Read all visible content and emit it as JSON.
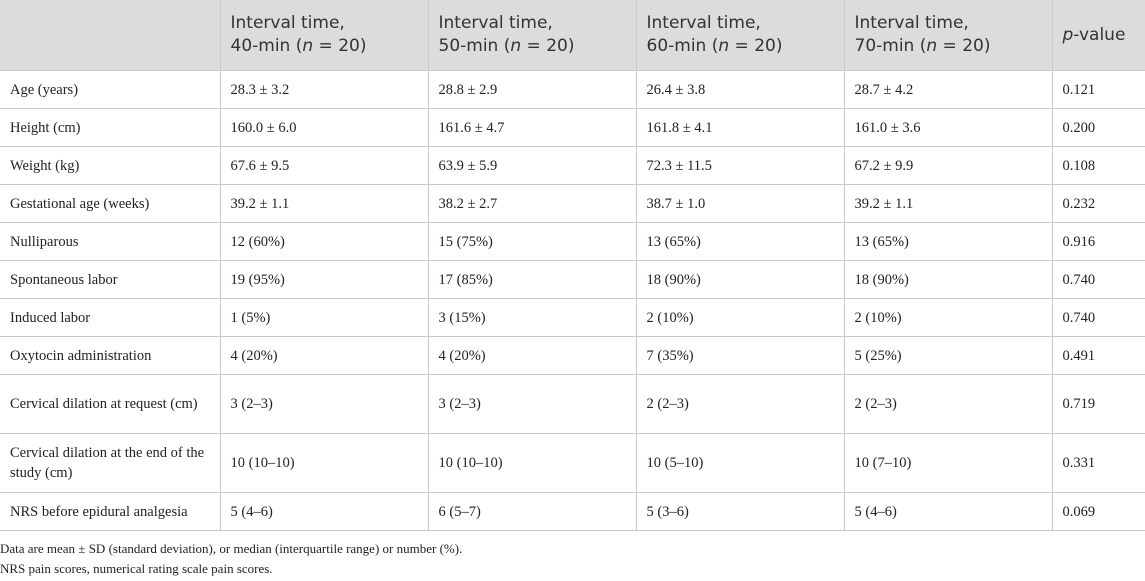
{
  "table": {
    "headers": [
      {
        "l1": "",
        "l2": ""
      },
      {
        "l1": "Interval time,",
        "l2": "40-min (n = 20)"
      },
      {
        "l1": "Interval time,",
        "l2": "50-min (n = 20)"
      },
      {
        "l1": "Interval time,",
        "l2": "60-min (n = 20)"
      },
      {
        "l1": "Interval time,",
        "l2": "70-min (n = 20)"
      },
      {
        "l1": "p-value",
        "l2": ""
      }
    ],
    "rows": [
      [
        "Age (years)",
        "28.3 ± 3.2",
        "28.8 ± 2.9",
        "26.4 ± 3.8",
        "28.7 ± 4.2",
        "0.121"
      ],
      [
        "Height (cm)",
        "160.0 ± 6.0",
        "161.6 ± 4.7",
        "161.8 ± 4.1",
        "161.0 ± 3.6",
        "0.200"
      ],
      [
        "Weight (kg)",
        "67.6 ± 9.5",
        "63.9 ± 5.9",
        "72.3 ± 11.5",
        "67.2 ± 9.9",
        "0.108"
      ],
      [
        "Gestational age (weeks)",
        "39.2 ± 1.1",
        "38.2 ± 2.7",
        "38.7 ± 1.0",
        "39.2 ± 1.1",
        "0.232"
      ],
      [
        "Nulliparous",
        "12 (60%)",
        "15 (75%)",
        "13 (65%)",
        "13 (65%)",
        "0.916"
      ],
      [
        "Spontaneous labor",
        "19 (95%)",
        "17 (85%)",
        "18 (90%)",
        "18 (90%)",
        "0.740"
      ],
      [
        "Induced labor",
        "1 (5%)",
        "3 (15%)",
        "2 (10%)",
        "2 (10%)",
        "0.740"
      ],
      [
        "Oxytocin administration",
        "4 (20%)",
        "4 (20%)",
        "7 (35%)",
        "5 (25%)",
        "0.491"
      ],
      [
        "Cervical dilation at request (cm)",
        "3 (2–3)",
        "3 (2–3)",
        "2 (2–3)",
        "2 (2–3)",
        "0.719"
      ],
      [
        "Cervical dilation at the end of the study (cm)",
        "10 (10–10)",
        "10 (10–10)",
        "10 (5–10)",
        "10 (7–10)",
        "0.331"
      ],
      [
        "NRS before epidural analgesia",
        "5 (4–6)",
        "6 (5–7)",
        "5 (3–6)",
        "5 (4–6)",
        "0.069"
      ]
    ]
  },
  "footnotes": [
    "Data are mean ± SD (standard deviation), or median (interquartile range) or number (%).",
    "NRS pain scores, numerical rating scale pain scores."
  ]
}
